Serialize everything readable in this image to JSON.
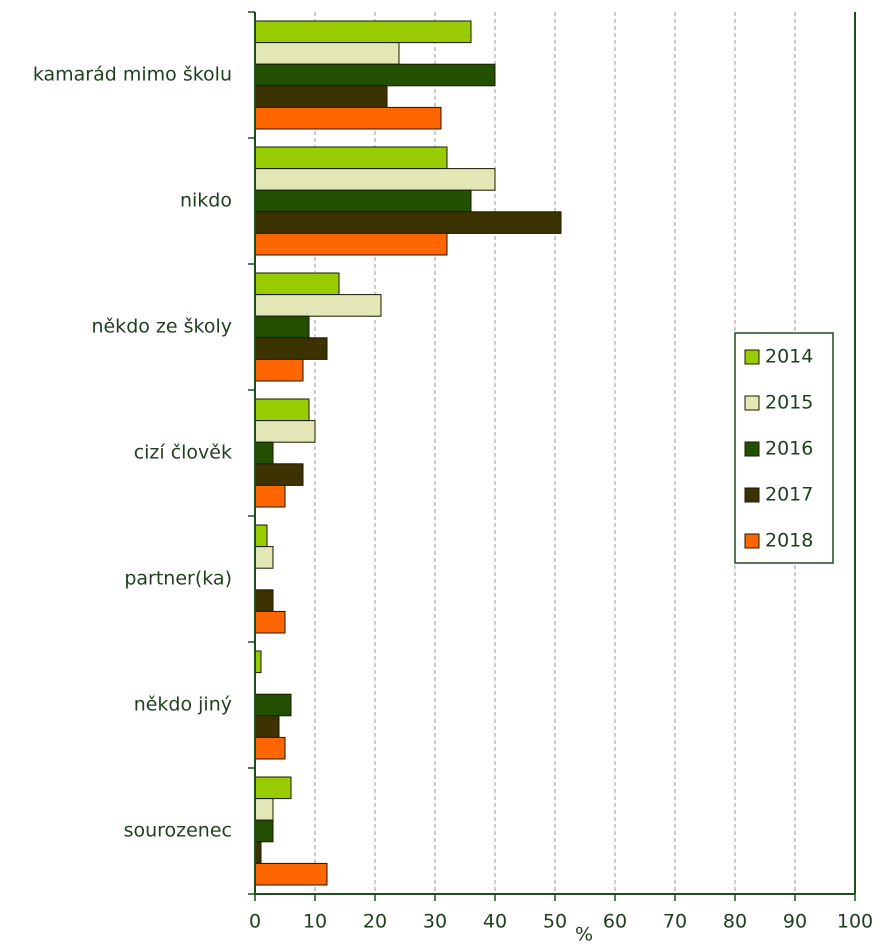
{
  "chart_data": {
    "type": "bar",
    "orientation": "horizontal",
    "x_label": "%",
    "categories": [
      "kamarád mimo školu",
      "nikdo",
      "někdo ze školy",
      "cizí člověk",
      "partner(ka)",
      "někdo jiný",
      "sourozenec"
    ],
    "series": [
      {
        "name": "2014",
        "color": "#99cc00",
        "values": [
          36,
          32,
          14,
          9,
          2,
          1,
          6
        ]
      },
      {
        "name": "2015",
        "color": "#e3e6b5",
        "values": [
          24,
          40,
          21,
          10,
          3,
          0,
          3
        ]
      },
      {
        "name": "2016",
        "color": "#235000",
        "values": [
          40,
          36,
          9,
          3,
          0,
          6,
          3
        ]
      },
      {
        "name": "2017",
        "color": "#3c3300",
        "values": [
          22,
          51,
          12,
          8,
          3,
          4,
          1
        ]
      },
      {
        "name": "2018",
        "color": "#ff6600",
        "values": [
          31,
          32,
          8,
          5,
          5,
          5,
          12
        ]
      }
    ],
    "xlim": [
      0,
      100
    ],
    "xticks": [
      0,
      10,
      20,
      30,
      40,
      50,
      60,
      70,
      80,
      90,
      100
    ],
    "grid": true,
    "legend": "right"
  }
}
